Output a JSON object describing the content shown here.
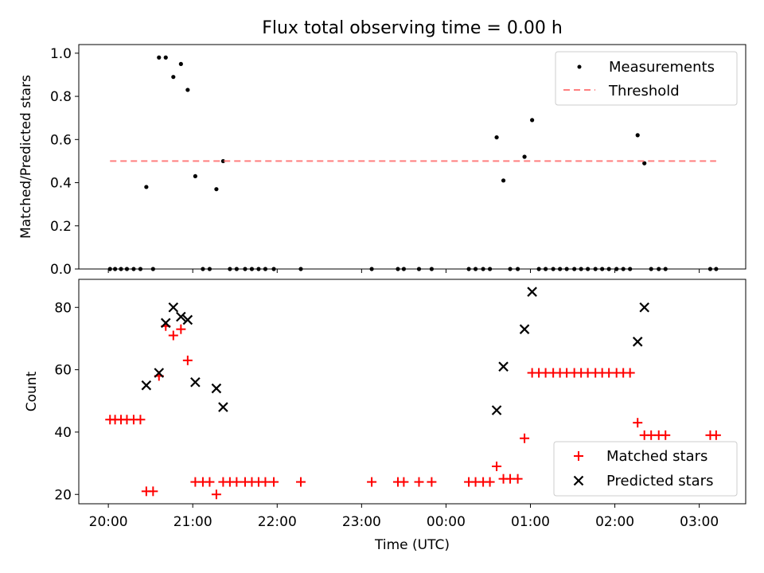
{
  "chart_data": {
    "title": "Flux total observing time = 0.00 h",
    "x_axis": {
      "label": "Time (UTC)",
      "ticks": [
        "20:00",
        "21:00",
        "22:00",
        "23:00",
        "00:00",
        "01:00",
        "02:00",
        "03:00"
      ],
      "tick_hours": [
        0,
        1,
        2,
        3,
        4,
        5,
        6,
        7
      ],
      "xlim_hours": [
        -0.35,
        7.55
      ],
      "note_x_unit": "hours after 20:00 UTC"
    },
    "panels": [
      {
        "type": "scatter",
        "ylabel": "Matched/Predicted stars",
        "ylim": [
          0,
          1.04
        ],
        "yticks": [
          "0.0",
          "0.2",
          "0.4",
          "0.6",
          "0.8",
          "1.0"
        ],
        "ytick_values": [
          0,
          0.2,
          0.4,
          0.6,
          0.8,
          1.0
        ],
        "legend_position": "top-right",
        "series": [
          {
            "name": "Measurements",
            "color": "#000000",
            "marker": "dot",
            "points": [
              [
                0.02,
                0
              ],
              [
                0.08,
                0
              ],
              [
                0.15,
                0
              ],
              [
                0.22,
                0
              ],
              [
                0.3,
                0
              ],
              [
                0.38,
                0
              ],
              [
                0.45,
                0.38
              ],
              [
                0.53,
                0
              ],
              [
                0.6,
                0.98
              ],
              [
                0.68,
                0.98
              ],
              [
                0.77,
                0.89
              ],
              [
                0.86,
                0.95
              ],
              [
                0.94,
                0.83
              ],
              [
                1.03,
                0.43
              ],
              [
                1.12,
                0
              ],
              [
                1.2,
                0
              ],
              [
                1.28,
                0.37
              ],
              [
                1.36,
                0.5
              ],
              [
                1.44,
                0
              ],
              [
                1.52,
                0
              ],
              [
                1.62,
                0
              ],
              [
                1.7,
                0
              ],
              [
                1.78,
                0
              ],
              [
                1.86,
                0
              ],
              [
                1.96,
                0
              ],
              [
                2.28,
                0
              ],
              [
                3.12,
                0
              ],
              [
                3.43,
                0
              ],
              [
                3.5,
                0
              ],
              [
                3.68,
                0
              ],
              [
                3.83,
                0
              ],
              [
                4.27,
                0
              ],
              [
                4.35,
                0
              ],
              [
                4.44,
                0
              ],
              [
                4.52,
                0
              ],
              [
                4.6,
                0.61
              ],
              [
                4.68,
                0.41
              ],
              [
                4.76,
                0
              ],
              [
                4.85,
                0
              ],
              [
                4.93,
                0.52
              ],
              [
                5.02,
                0.69
              ],
              [
                5.1,
                0
              ],
              [
                5.18,
                0
              ],
              [
                5.27,
                0
              ],
              [
                5.35,
                0
              ],
              [
                5.43,
                0
              ],
              [
                5.52,
                0
              ],
              [
                5.6,
                0
              ],
              [
                5.68,
                0
              ],
              [
                5.77,
                0
              ],
              [
                5.85,
                0
              ],
              [
                5.93,
                0
              ],
              [
                6.02,
                0
              ],
              [
                6.1,
                0
              ],
              [
                6.18,
                0
              ],
              [
                6.27,
                0.62
              ],
              [
                6.35,
                0.49
              ],
              [
                6.43,
                0
              ],
              [
                6.52,
                0
              ],
              [
                6.6,
                0
              ],
              [
                7.13,
                0
              ],
              [
                7.2,
                0
              ]
            ]
          },
          {
            "name": "Threshold",
            "color": "#ff7f7f",
            "style": "dashed",
            "x_range": [
              0.02,
              7.2
            ],
            "value": 0.5
          }
        ]
      },
      {
        "type": "scatter",
        "ylabel": "Count",
        "ylim": [
          17,
          89
        ],
        "yticks": [
          "20",
          "40",
          "60",
          "80"
        ],
        "ytick_values": [
          20,
          40,
          60,
          80
        ],
        "legend_position": "bottom-right",
        "series": [
          {
            "name": "Matched stars",
            "color": "#ff0000",
            "marker": "plus",
            "points": [
              [
                0.02,
                44
              ],
              [
                0.08,
                44
              ],
              [
                0.15,
                44
              ],
              [
                0.22,
                44
              ],
              [
                0.3,
                44
              ],
              [
                0.38,
                44
              ],
              [
                0.45,
                21
              ],
              [
                0.53,
                21
              ],
              [
                0.6,
                58
              ],
              [
                0.68,
                74
              ],
              [
                0.77,
                71
              ],
              [
                0.86,
                73
              ],
              [
                0.94,
                63
              ],
              [
                1.03,
                24
              ],
              [
                1.12,
                24
              ],
              [
                1.2,
                24
              ],
              [
                1.28,
                20
              ],
              [
                1.36,
                24
              ],
              [
                1.44,
                24
              ],
              [
                1.52,
                24
              ],
              [
                1.62,
                24
              ],
              [
                1.7,
                24
              ],
              [
                1.78,
                24
              ],
              [
                1.86,
                24
              ],
              [
                1.96,
                24
              ],
              [
                2.28,
                24
              ],
              [
                3.12,
                24
              ],
              [
                3.43,
                24
              ],
              [
                3.5,
                24
              ],
              [
                3.68,
                24
              ],
              [
                3.83,
                24
              ],
              [
                4.27,
                24
              ],
              [
                4.35,
                24
              ],
              [
                4.44,
                24
              ],
              [
                4.52,
                24
              ],
              [
                4.6,
                29
              ],
              [
                4.68,
                25
              ],
              [
                4.76,
                25
              ],
              [
                4.85,
                25
              ],
              [
                4.93,
                38
              ],
              [
                5.02,
                59
              ],
              [
                5.1,
                59
              ],
              [
                5.18,
                59
              ],
              [
                5.27,
                59
              ],
              [
                5.35,
                59
              ],
              [
                5.43,
                59
              ],
              [
                5.52,
                59
              ],
              [
                5.6,
                59
              ],
              [
                5.68,
                59
              ],
              [
                5.77,
                59
              ],
              [
                5.85,
                59
              ],
              [
                5.93,
                59
              ],
              [
                6.02,
                59
              ],
              [
                6.1,
                59
              ],
              [
                6.18,
                59
              ],
              [
                6.27,
                43
              ],
              [
                6.35,
                39
              ],
              [
                6.43,
                39
              ],
              [
                6.52,
                39
              ],
              [
                6.6,
                39
              ],
              [
                7.13,
                39
              ],
              [
                7.2,
                39
              ]
            ]
          },
          {
            "name": "Predicted stars",
            "color": "#000000",
            "marker": "x",
            "points": [
              [
                0.45,
                55
              ],
              [
                0.6,
                59
              ],
              [
                0.68,
                75
              ],
              [
                0.77,
                80
              ],
              [
                0.86,
                77
              ],
              [
                0.94,
                76
              ],
              [
                1.03,
                56
              ],
              [
                1.28,
                54
              ],
              [
                1.36,
                48
              ],
              [
                4.6,
                47
              ],
              [
                4.68,
                61
              ],
              [
                4.93,
                73
              ],
              [
                5.02,
                85
              ],
              [
                6.27,
                69
              ],
              [
                6.35,
                80
              ]
            ]
          }
        ]
      }
    ]
  }
}
